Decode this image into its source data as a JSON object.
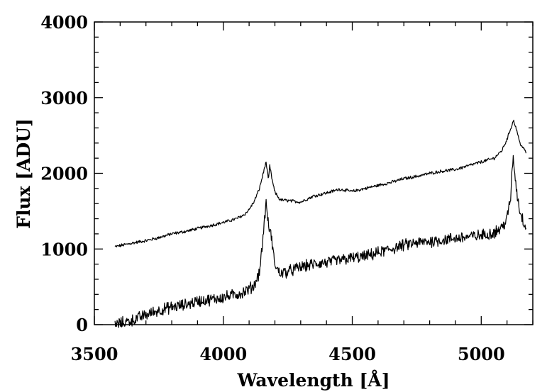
{
  "chart_data": {
    "type": "line",
    "title": "",
    "xlabel": "Wavelength [Å]",
    "ylabel": "Flux [ADU]",
    "xlim": [
      3500,
      5200
    ],
    "ylim": [
      0,
      4000
    ],
    "x_ticks": [
      3500,
      4000,
      4500,
      5000
    ],
    "y_ticks": [
      0,
      1000,
      2000,
      3000,
      4000
    ],
    "x_tick_labels": [
      "3500",
      "4000",
      "4500",
      "5000"
    ],
    "y_tick_labels": [
      "0",
      "1000",
      "2000",
      "3000",
      "4000"
    ],
    "grid": false,
    "legend": "none",
    "series": [
      {
        "noise": 18,
        "x": [
          3580,
          3650,
          3700,
          3750,
          3800,
          3850,
          3900,
          3950,
          4000,
          4050,
          4080,
          4100,
          4120,
          4140,
          4155,
          4165,
          4170,
          4175,
          4180,
          4190,
          4200,
          4220,
          4250,
          4300,
          4350,
          4400,
          4450,
          4500,
          4550,
          4600,
          4650,
          4700,
          4750,
          4800,
          4850,
          4900,
          4950,
          5000,
          5050,
          5080,
          5100,
          5115,
          5125,
          5135,
          5150,
          5175
        ],
        "y": [
          1030,
          1080,
          1110,
          1150,
          1200,
          1230,
          1270,
          1310,
          1350,
          1400,
          1450,
          1520,
          1630,
          1800,
          2000,
          2150,
          2050,
          1900,
          2100,
          1900,
          1750,
          1650,
          1640,
          1620,
          1700,
          1740,
          1790,
          1760,
          1800,
          1840,
          1880,
          1930,
          1960,
          2000,
          2030,
          2050,
          2100,
          2150,
          2200,
          2300,
          2450,
          2600,
          2700,
          2600,
          2400,
          2270
        ]
      },
      {
        "noise": 70,
        "x": [
          3580,
          3650,
          3700,
          3750,
          3800,
          3850,
          3900,
          3950,
          4000,
          4050,
          4080,
          4100,
          4120,
          4140,
          4150,
          4160,
          4165,
          4170,
          4175,
          4185,
          4195,
          4205,
          4220,
          4250,
          4300,
          4350,
          4400,
          4450,
          4500,
          4550,
          4600,
          4650,
          4700,
          4750,
          4800,
          4850,
          4900,
          4950,
          5000,
          5050,
          5080,
          5100,
          5115,
          5120,
          5125,
          5130,
          5140,
          5150,
          5165,
          5175
        ],
        "y": [
          0,
          60,
          130,
          190,
          230,
          260,
          310,
          330,
          360,
          400,
          430,
          470,
          520,
          700,
          1000,
          1400,
          1600,
          1500,
          1300,
          1200,
          900,
          750,
          680,
          700,
          760,
          800,
          820,
          850,
          880,
          900,
          950,
          1000,
          1050,
          1080,
          1100,
          1120,
          1140,
          1160,
          1180,
          1220,
          1280,
          1400,
          1700,
          2100,
          2200,
          2000,
          1700,
          1500,
          1350,
          1300
        ]
      }
    ]
  }
}
